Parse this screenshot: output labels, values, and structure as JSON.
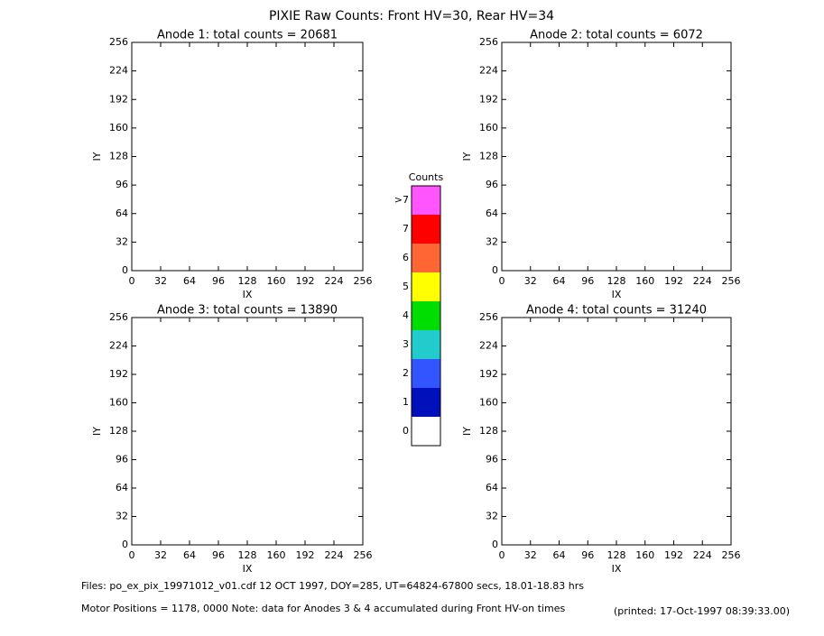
{
  "title": "PIXIE Raw Counts:  Front HV=30, Rear HV=34",
  "chart_data": [
    {
      "type": "heatmap",
      "title": "Anode 1: total counts = 20681",
      "xlabel": "IX",
      "ylabel": "IY",
      "xlim": [
        0,
        256
      ],
      "ylim": [
        0,
        256
      ],
      "xticks": [
        0,
        32,
        64,
        96,
        128,
        160,
        192,
        224,
        256
      ],
      "yticks": [
        0,
        32,
        64,
        96,
        128,
        160,
        192,
        224,
        256
      ]
    },
    {
      "type": "heatmap",
      "title": "Anode 2: total counts = 6072",
      "xlabel": "IX",
      "ylabel": "IY",
      "xlim": [
        0,
        256
      ],
      "ylim": [
        0,
        256
      ],
      "xticks": [
        0,
        32,
        64,
        96,
        128,
        160,
        192,
        224,
        256
      ],
      "yticks": [
        0,
        32,
        64,
        96,
        128,
        160,
        192,
        224,
        256
      ]
    },
    {
      "type": "heatmap",
      "title": "Anode 3: total counts = 13890",
      "xlabel": "IX",
      "ylabel": "IY",
      "xlim": [
        0,
        256
      ],
      "ylim": [
        0,
        256
      ],
      "xticks": [
        0,
        32,
        64,
        96,
        128,
        160,
        192,
        224,
        256
      ],
      "yticks": [
        0,
        32,
        64,
        96,
        128,
        160,
        192,
        224,
        256
      ]
    },
    {
      "type": "heatmap",
      "title": "Anode 4: total counts = 31240",
      "xlabel": "IX",
      "ylabel": "IY",
      "xlim": [
        0,
        256
      ],
      "ylim": [
        0,
        256
      ],
      "xticks": [
        0,
        32,
        64,
        96,
        128,
        160,
        192,
        224,
        256
      ],
      "yticks": [
        0,
        32,
        64,
        96,
        128,
        160,
        192,
        224,
        256
      ]
    }
  ],
  "colorbar": {
    "title": "Counts",
    "labels": [
      ">7",
      7,
      6,
      5,
      4,
      3,
      2,
      1,
      0
    ],
    "colors": [
      "#ff55ff",
      "#ff0000",
      "#ff6633",
      "#ffff00",
      "#00dd00",
      "#22cccc",
      "#3355ff",
      "#0011bb",
      "#ffffff"
    ]
  },
  "footer": {
    "files": "Files: po_ex_pix_19971012_v01.cdf    12 OCT 1997, DOY=285, UT=64824-67800 secs, 18.01-18.83 hrs",
    "motor": "Motor Positions = 1178, 0000    Note: data for Anodes 3 & 4 accumulated during Front HV-on times",
    "printed": "(printed: 17-Oct-1997 08:39:33.00)"
  }
}
